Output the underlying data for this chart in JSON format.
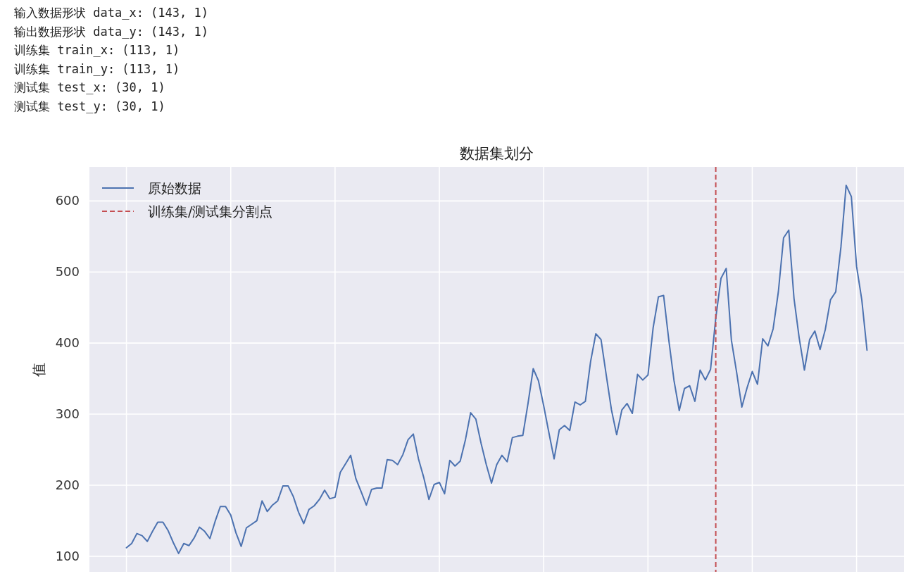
{
  "chart_data": {
    "type": "line",
    "title": "数据集划分",
    "ylabel": "值",
    "annotations": [
      "输入数据形状 data_x: (143, 1)",
      "输出数据形状 data_y: (143, 1)",
      "训练集 train_x: (113, 1)",
      "训练集 train_y: (113, 1)",
      "测试集 test_x: (30, 1)",
      "测试集 test_y: (30, 1)"
    ],
    "categories": [
      null,
      null,
      null,
      null,
      null,
      null,
      null,
      null,
      null,
      null,
      null,
      null,
      null,
      null,
      null,
      null,
      null,
      null,
      null,
      null,
      null,
      null,
      null,
      null,
      null,
      null,
      null,
      null,
      null,
      null,
      null,
      null,
      null,
      null,
      null,
      null,
      null,
      null,
      null,
      null,
      null,
      null,
      null,
      null,
      null,
      null,
      null,
      null,
      null,
      null,
      null,
      null,
      null,
      null,
      null,
      null,
      null,
      null,
      null,
      null,
      null,
      null,
      null,
      null,
      null,
      null,
      null,
      null,
      null,
      null,
      null,
      null,
      null,
      null,
      null,
      null,
      null,
      null,
      null,
      null,
      null,
      null,
      null,
      null,
      null,
      null,
      null,
      null,
      null,
      null,
      null,
      null,
      null,
      null,
      null,
      null,
      null,
      null,
      null,
      null,
      null,
      null,
      null,
      null,
      null,
      null,
      null,
      null,
      null,
      null,
      null,
      null,
      null,
      null,
      null,
      null,
      null,
      null,
      null,
      null,
      null,
      null,
      null,
      null,
      null,
      null,
      null,
      null,
      null,
      null,
      null,
      null,
      null,
      null,
      null,
      null,
      null,
      null,
      null,
      null,
      null,
      null,
      null
    ],
    "series": [
      {
        "name": "原始数据",
        "color": "#4c72b0",
        "values": [
          112,
          118,
          132,
          129,
          121,
          135,
          148,
          148,
          136,
          119,
          104,
          118,
          115,
          126,
          141,
          135,
          125,
          149,
          170,
          170,
          158,
          133,
          114,
          140,
          145,
          150,
          178,
          163,
          172,
          178,
          199,
          199,
          184,
          162,
          146,
          166,
          171,
          180,
          193,
          181,
          183,
          218,
          230,
          242,
          209,
          191,
          172,
          194,
          196,
          196,
          236,
          235,
          229,
          243,
          264,
          272,
          237,
          211,
          180,
          201,
          204,
          188,
          235,
          227,
          234,
          264,
          302,
          293,
          259,
          229,
          203,
          229,
          242,
          233,
          267,
          269,
          270,
          315,
          364,
          347,
          312,
          274,
          237,
          278,
          284,
          277,
          317,
          313,
          318,
          374,
          413,
          405,
          355,
          306,
          271,
          306,
          315,
          301,
          356,
          348,
          355,
          422,
          465,
          467,
          404,
          347,
          305,
          336,
          340,
          318,
          362,
          348,
          363,
          435,
          491,
          505,
          404,
          359,
          310,
          337,
          360,
          342,
          406,
          396,
          420,
          472,
          548,
          559,
          463,
          407,
          362,
          405,
          417,
          391,
          419,
          461,
          472,
          535,
          622,
          606,
          508,
          461,
          390
        ]
      }
    ],
    "ref_lines": [
      {
        "axis": "x",
        "label": "训练集/测试集分割点",
        "color": "#c44e52",
        "line_style": "dashed"
      }
    ],
    "ylim": [
      78.1,
      647.9
    ],
    "yticks": [
      100,
      200,
      300,
      400,
      500,
      600
    ],
    "tick_labels": "y",
    "grid": true,
    "legend": "top left"
  }
}
